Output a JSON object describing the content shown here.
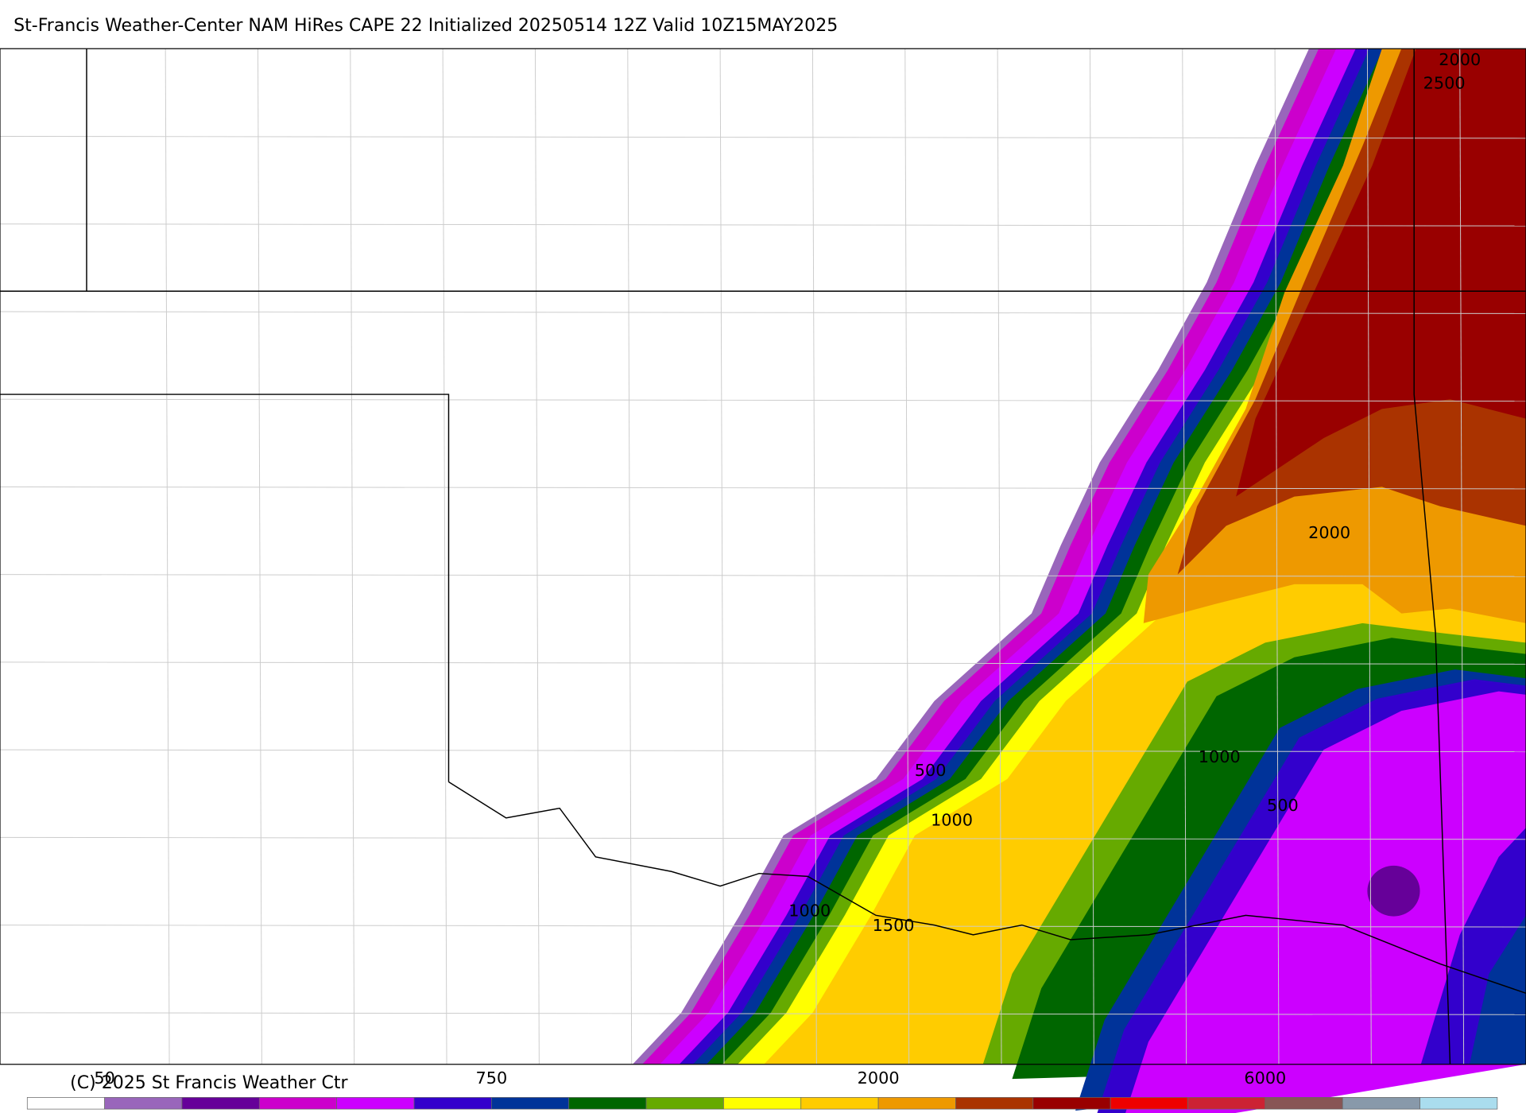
{
  "header": {
    "title": "St-Francis Weather-Center NAM HiRes CAPE  22 Initialized 20250514 12Z Valid 10Z15MAY2025"
  },
  "map": {
    "contour_labels": [
      "2000",
      "2500",
      "2000",
      "500",
      "1000",
      "1000",
      "500",
      "1500",
      "1000"
    ]
  },
  "colorbar": {
    "colors": [
      "#ffffff",
      "#9966bb",
      "#660099",
      "#cc00cc",
      "#cc00ff",
      "#3300cc",
      "#003399",
      "#006600",
      "#66aa00",
      "#ffff00",
      "#ffcc00",
      "#ee9900",
      "#aa3300",
      "#990000",
      "#ee0000",
      "#cc2233",
      "#885555",
      "#8899aa",
      "#aaddee"
    ],
    "labels": [
      "50",
      "750",
      "2000",
      "6000"
    ]
  },
  "footer": {
    "copyright": "(C) 2025 St Francis Weather Ctr"
  }
}
